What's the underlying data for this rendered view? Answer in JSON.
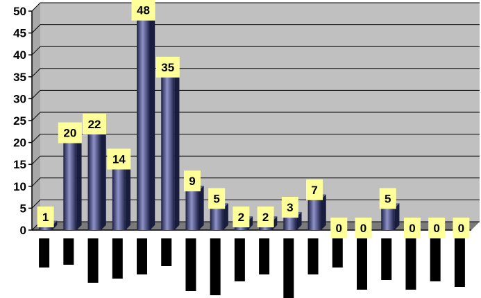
{
  "chart_data": {
    "type": "bar",
    "title": "",
    "xlabel": "",
    "ylabel": "",
    "ylim": [
      0,
      50
    ],
    "y_ticks": [
      "0",
      "5",
      "10",
      "15",
      "20",
      "25",
      "30",
      "35",
      "40",
      "45",
      "50"
    ],
    "categories": [
      "",
      "",
      "",
      "",
      "",
      "",
      "",
      "",
      "",
      "",
      "",
      "",
      "",
      "",
      "",
      "",
      "",
      ""
    ],
    "values": [
      1,
      20,
      22,
      14,
      48,
      35,
      9,
      5,
      2,
      2,
      3,
      7,
      0,
      0,
      5,
      0,
      0,
      0
    ],
    "data_labels": [
      "1",
      "20",
      "22",
      "14",
      "48",
      "35",
      "9",
      "5",
      "2",
      "2",
      "3",
      "7",
      "0",
      "0",
      "5",
      "0",
      "0",
      "0"
    ],
    "grid": true,
    "legend": "none",
    "three_d": true,
    "colors": {
      "plot_background": "#c0c0c0",
      "gridline": "#000000",
      "bar_front": "#2e3566",
      "bar_highlight": "#8f93c8",
      "bar_side": "#181c3d",
      "bar_top": "#5a5f96",
      "floor": "#7a7a7a",
      "data_label_background": "#ffff99",
      "category_label_placeholder": "#000000"
    }
  }
}
